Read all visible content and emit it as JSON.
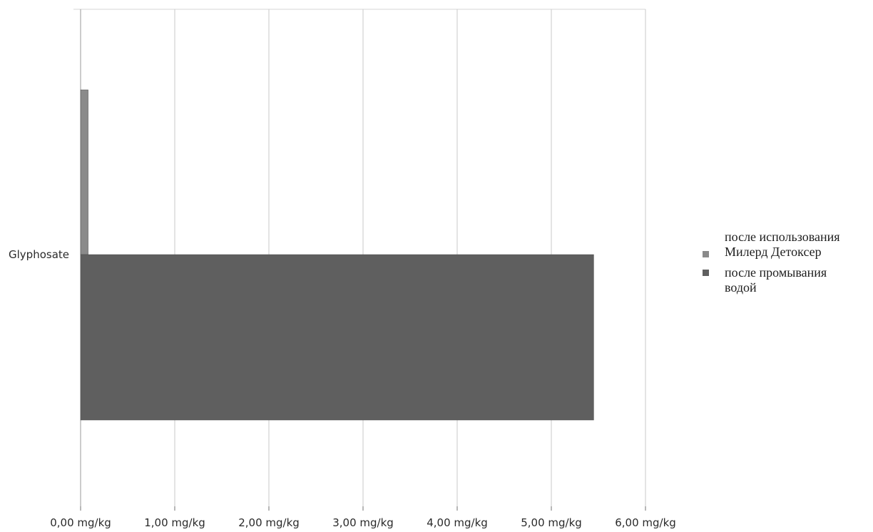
{
  "chart_data": {
    "type": "bar",
    "orientation": "horizontal",
    "categories": [
      "Glyphosate"
    ],
    "series": [
      {
        "name": "после использования Милерд Детоксер",
        "values": [
          0.08
        ],
        "color": "#8a8a8a"
      },
      {
        "name": "после промывания водой",
        "values": [
          5.45
        ],
        "color": "#5f5f5f"
      }
    ],
    "xlim": [
      0,
      6
    ],
    "x_ticks": [
      0,
      1,
      2,
      3,
      4,
      5,
      6
    ],
    "x_tick_labels": [
      "0,00 mg/kg",
      "1,00 mg/kg",
      "2,00 mg/kg",
      "3,00 mg/kg",
      "4,00 mg/kg",
      "5,00 mg/kg",
      "6,00 mg/kg"
    ],
    "title": "",
    "xlabel": "",
    "ylabel": "",
    "grid": "vertical",
    "legend_position": "right"
  },
  "legend": {
    "items": [
      {
        "lines": [
          "после использования",
          "Милерд Детоксер"
        ]
      },
      {
        "lines": [
          "после промывания",
          "водой"
        ]
      }
    ]
  }
}
